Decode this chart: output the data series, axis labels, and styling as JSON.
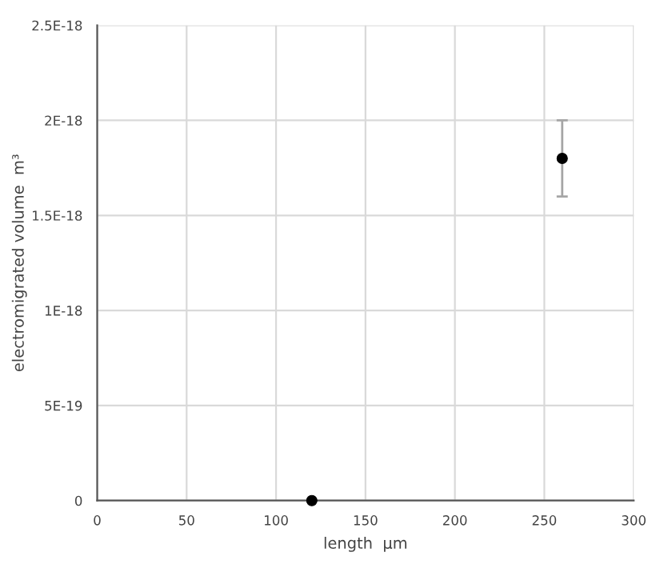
{
  "chart_data": {
    "type": "scatter",
    "xlabel": "length  µm",
    "ylabel": "electromigrated volume  m³",
    "x": [
      120,
      260
    ],
    "series": [
      {
        "color": "#000000",
        "values": [
          0,
          1.8e-18
        ],
        "errors": [
          null,
          2e-19
        ]
      }
    ],
    "xlim": [
      0,
      300
    ],
    "xticks": [
      0,
      50,
      100,
      150,
      200,
      250,
      300
    ],
    "ylim": [
      0,
      2.5e-18
    ],
    "yticks": [
      {
        "value": 0,
        "label": "0"
      },
      {
        "value": 5e-19,
        "label": "5E-19"
      },
      {
        "value": 1e-18,
        "label": "1E-18"
      },
      {
        "value": 1.5e-18,
        "label": "1.5E-18"
      },
      {
        "value": 2e-18,
        "label": "2E-18"
      },
      {
        "value": 2.5e-18,
        "label": "2.5E-18"
      }
    ],
    "grid": true,
    "marker": "circle"
  }
}
